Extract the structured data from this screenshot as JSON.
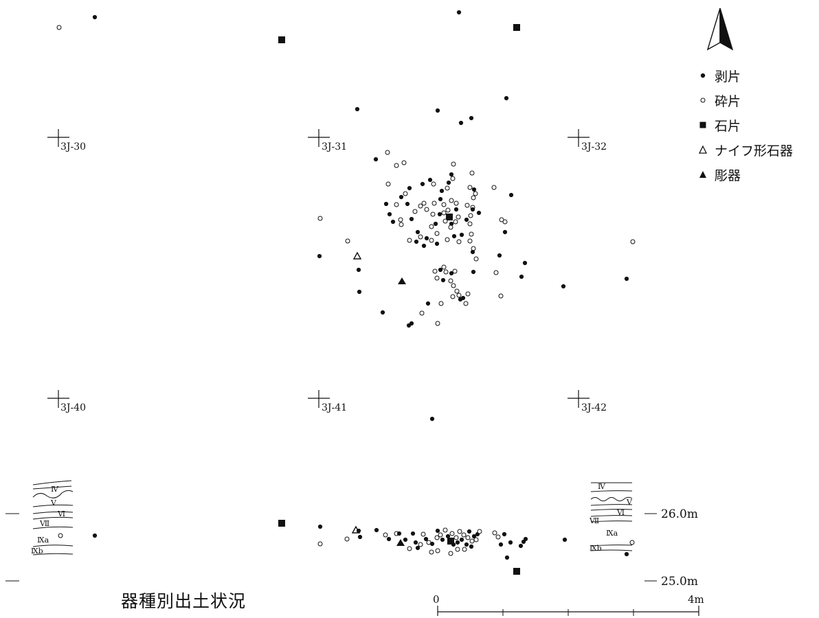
{
  "caption": "器種別出土状況",
  "legend": {
    "items": [
      {
        "symbol": "flake-dot",
        "label": "剥片"
      },
      {
        "symbol": "chip-circle",
        "label": "砕片"
      },
      {
        "symbol": "stone-square",
        "label": "石片"
      },
      {
        "symbol": "knife-triangle-open",
        "label": "ナイフ形石器"
      },
      {
        "symbol": "burin-triangle-filled",
        "label": "彫器"
      }
    ]
  },
  "grid_labels": [
    "3J-30",
    "3J-31",
    "3J-32",
    "3J-40",
    "3J-41",
    "3J-42"
  ],
  "section": {
    "elevation_labels": [
      "26.0m",
      "25.0m"
    ],
    "left_layers": [
      "Ⅳ",
      "Ⅴ",
      "Ⅵ",
      "Ⅶ",
      "Ⅸa",
      "Ⅸb"
    ],
    "right_layers": [
      "Ⅳ",
      "Ⅴ",
      "Ⅵ",
      "Ⅶ",
      "Ⅸa",
      "Ⅸb"
    ]
  },
  "scale_bar": {
    "start_label": "0",
    "end_label": "4m"
  },
  "icons": {
    "north": "north-arrow-icon"
  }
}
